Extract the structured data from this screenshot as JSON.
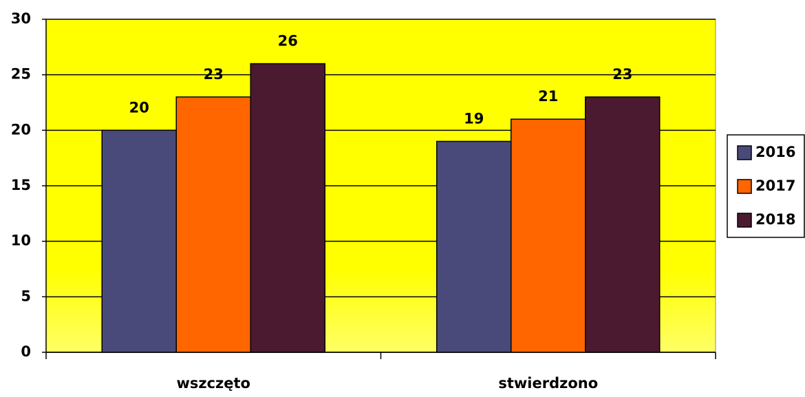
{
  "chart_data": {
    "type": "bar",
    "categories": [
      "wszczęto",
      "stwierdzono"
    ],
    "series": [
      {
        "name": "2016",
        "color": "#4a4a7a",
        "values": [
          20,
          19
        ]
      },
      {
        "name": "2017",
        "color": "#ff6600",
        "values": [
          23,
          21
        ]
      },
      {
        "name": "2018",
        "color": "#4b1a30",
        "values": [
          26,
          23
        ]
      }
    ],
    "ylim": [
      0,
      30
    ],
    "yticks": [
      0,
      5,
      10,
      15,
      20,
      25,
      30
    ],
    "grid": true,
    "legend": "right"
  }
}
